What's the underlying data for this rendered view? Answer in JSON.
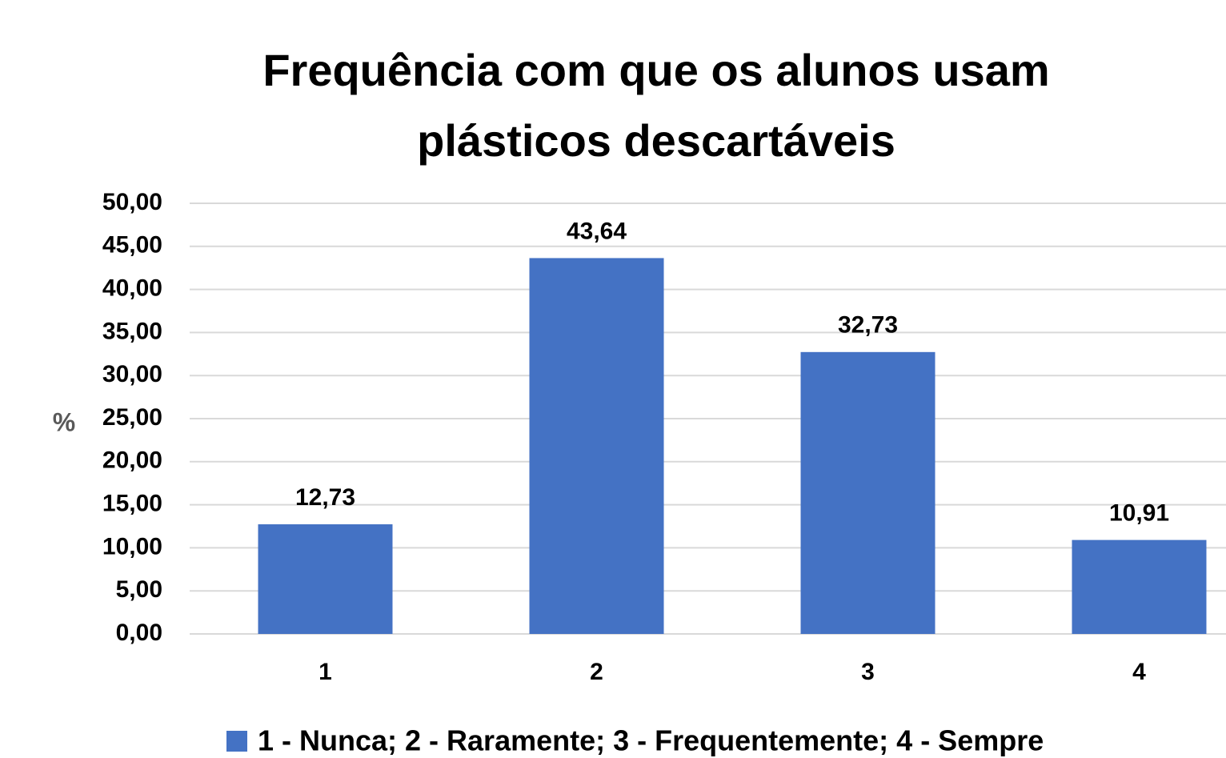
{
  "chart_data": {
    "type": "bar",
    "title": "Frequência com que os alunos usam plásticos descartáveis",
    "y_label": "%",
    "categories": [
      "1",
      "2",
      "3",
      "4"
    ],
    "series": [
      {
        "name": "1 - Nunca; 2 - Raramente; 3 - Frequentemente; 4 - Sempre",
        "color": "#4472c4",
        "values": [
          12.73,
          43.64,
          32.73,
          10.91
        ],
        "value_labels": [
          "12,73",
          "43,64",
          "32,73",
          "10,91"
        ]
      }
    ],
    "ylim": [
      0,
      50
    ],
    "yticks": [
      {
        "value": 0,
        "label": "0,00"
      },
      {
        "value": 5,
        "label": "5,00"
      },
      {
        "value": 10,
        "label": "10,00"
      },
      {
        "value": 15,
        "label": "15,00"
      },
      {
        "value": 20,
        "label": "20,00"
      },
      {
        "value": 25,
        "label": "25,00"
      },
      {
        "value": 30,
        "label": "30,00"
      },
      {
        "value": 35,
        "label": "35,00"
      },
      {
        "value": 40,
        "label": "40,00"
      },
      {
        "value": 45,
        "label": "45,00"
      },
      {
        "value": 50,
        "label": "50,00"
      }
    ],
    "grid": true,
    "legend": "bottom"
  }
}
